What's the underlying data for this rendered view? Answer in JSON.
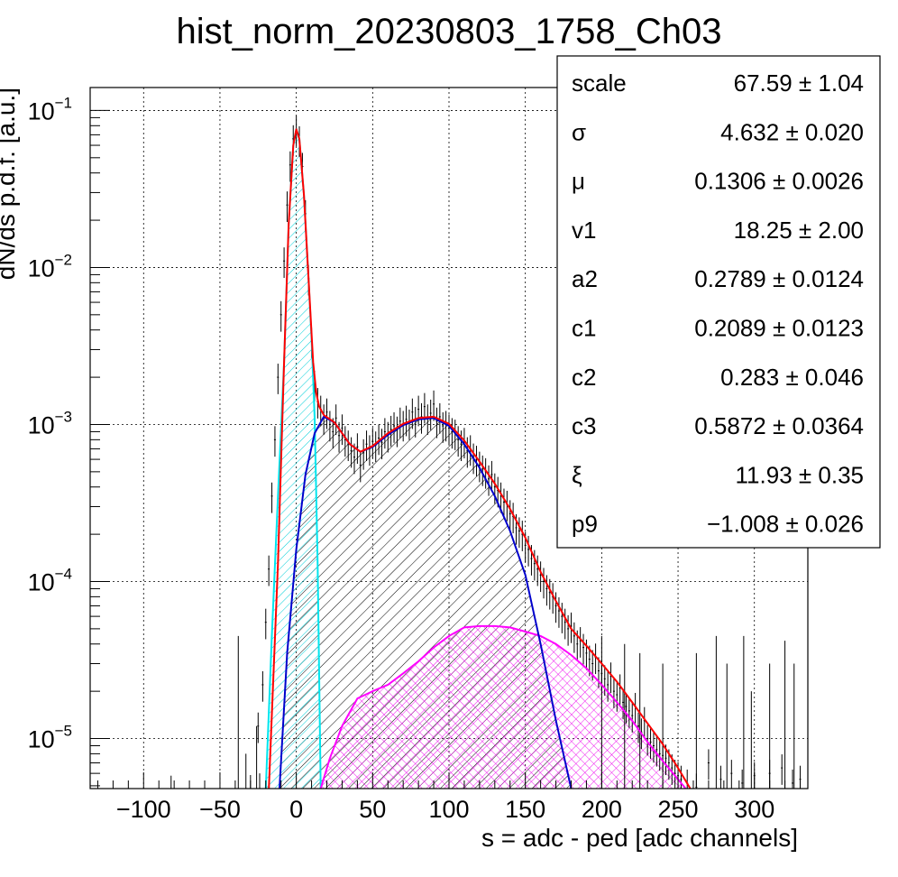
{
  "chart_data": {
    "type": "line",
    "title": "hist_norm_20230803_1758_Ch03",
    "xlabel": "s = adc - ped [adc channels]",
    "ylabel": "dN/ds p.d.f. [a.u.]",
    "xlim": [
      -135,
      335
    ],
    "ylim": [
      4.8e-06,
      0.14
    ],
    "yscale": "log",
    "grid": true,
    "x_ticks": [
      -100,
      -50,
      0,
      50,
      100,
      150,
      200,
      250,
      300
    ],
    "x_tick_labels": [
      "−100",
      "−50",
      "0",
      "50",
      "100",
      "150",
      "200",
      "250",
      "300"
    ],
    "y_ticks": [
      {
        "value": 0.1,
        "base": "10",
        "exp": "−1"
      },
      {
        "value": 0.01,
        "base": "10",
        "exp": "−2"
      },
      {
        "value": 0.001,
        "base": "10",
        "exp": "−3"
      },
      {
        "value": 0.0001,
        "base": "10",
        "exp": "−4"
      },
      {
        "value": 1e-05,
        "base": "10",
        "exp": "−5"
      }
    ],
    "stats_box": {
      "rows": [
        {
          "name": "scale",
          "value": "67.59 ± 1.04"
        },
        {
          "name": "σ",
          "value": "4.632 ± 0.020"
        },
        {
          "name": "μ",
          "value": "0.1306 ± 0.0026"
        },
        {
          "name": "v1",
          "value": "18.25 ± 2.00"
        },
        {
          "name": "a2",
          "value": "0.2789 ± 0.0124"
        },
        {
          "name": "c1",
          "value": "0.2089 ± 0.0123"
        },
        {
          "name": "c2",
          "value": "0.283 ± 0.046"
        },
        {
          "name": "c3",
          "value": "0.5872 ± 0.0364"
        },
        {
          "name": "ξ",
          "value": "11.93 ± 0.35"
        },
        {
          "name": "p9",
          "value": "−1.008 ± 0.026"
        }
      ]
    },
    "series": [
      {
        "role": "total-fit",
        "color": "#ff0000",
        "points": [
          [
            -18,
            4.8e-06
          ],
          [
            -12,
            0.00013
          ],
          [
            -8,
            0.0025
          ],
          [
            -5,
            0.019
          ],
          [
            -2,
            0.06
          ],
          [
            0,
            0.076
          ],
          [
            2,
            0.066
          ],
          [
            5,
            0.029
          ],
          [
            8,
            0.0085
          ],
          [
            11,
            0.0025
          ],
          [
            13,
            0.0016
          ],
          [
            15,
            0.0013
          ],
          [
            18,
            0.00115
          ],
          [
            25,
            0.00103
          ],
          [
            35,
            0.00075
          ],
          [
            42,
            0.00067
          ],
          [
            50,
            0.00073
          ],
          [
            60,
            0.00088
          ],
          [
            70,
            0.00101
          ],
          [
            80,
            0.0011
          ],
          [
            90,
            0.00112
          ],
          [
            100,
            0.00101
          ],
          [
            110,
            0.00079
          ],
          [
            120,
            0.00058
          ],
          [
            130,
            0.00042
          ],
          [
            140,
            0.00029
          ],
          [
            150,
            0.00019
          ],
          [
            160,
            0.000115
          ],
          [
            170,
            7.5e-05
          ],
          [
            180,
            5e-05
          ],
          [
            190,
            3.9e-05
          ],
          [
            200,
            3e-05
          ],
          [
            210,
            2.3e-05
          ],
          [
            220,
            1.7e-05
          ],
          [
            230,
            1.25e-05
          ],
          [
            240,
            9.2e-06
          ],
          [
            250,
            6.5e-06
          ],
          [
            258,
            4.8e-06
          ]
        ]
      },
      {
        "role": "pedestal-component",
        "color": "#00e5ee",
        "fill": "hatch",
        "points": [
          [
            -20,
            4.8e-06
          ],
          [
            -16,
            4.5e-05
          ],
          [
            -12,
            0.00035
          ],
          [
            -8,
            0.0025
          ],
          [
            -5,
            0.019
          ],
          [
            -2,
            0.06
          ],
          [
            0,
            0.076
          ],
          [
            2,
            0.066
          ],
          [
            5,
            0.029
          ],
          [
            8,
            0.0085
          ],
          [
            10,
            0.0035
          ],
          [
            12,
            0.0011
          ],
          [
            14,
            0.00013
          ],
          [
            16,
            4.8e-06
          ]
        ]
      },
      {
        "role": "single-photon-component",
        "color": "#0000cc",
        "fill": "hatch",
        "points": [
          [
            -11,
            4.8e-06
          ],
          [
            -6,
            3.5e-05
          ],
          [
            0,
            0.00016
          ],
          [
            6,
            0.00048
          ],
          [
            12,
            0.00088
          ],
          [
            18,
            0.00112
          ],
          [
            25,
            0.00103
          ],
          [
            35,
            0.00075
          ],
          [
            42,
            0.00067
          ],
          [
            50,
            0.00072
          ],
          [
            60,
            0.00086
          ],
          [
            70,
            0.00099
          ],
          [
            80,
            0.00108
          ],
          [
            90,
            0.0011
          ],
          [
            100,
            0.00098
          ],
          [
            110,
            0.00075
          ],
          [
            120,
            0.00053
          ],
          [
            130,
            0.00035
          ],
          [
            140,
            0.00021
          ],
          [
            150,
            0.00011
          ],
          [
            160,
            4e-05
          ],
          [
            170,
            1.3e-05
          ],
          [
            180,
            4.8e-06
          ]
        ]
      },
      {
        "role": "multi-photon-component",
        "color": "#ff00ff",
        "fill": "hatch",
        "points": [
          [
            16,
            4.8e-06
          ],
          [
            22,
            7.5e-06
          ],
          [
            30,
            1.2e-05
          ],
          [
            40,
            1.8e-05
          ],
          [
            50,
            2e-05
          ],
          [
            60,
            2.2e-05
          ],
          [
            70,
            2.6e-05
          ],
          [
            80,
            3.1e-05
          ],
          [
            90,
            3.8e-05
          ],
          [
            100,
            4.5e-05
          ],
          [
            110,
            5.1e-05
          ],
          [
            120,
            5.2e-05
          ],
          [
            130,
            5.2e-05
          ],
          [
            140,
            5.1e-05
          ],
          [
            150,
            4.8e-05
          ],
          [
            160,
            4.5e-05
          ],
          [
            170,
            4e-05
          ],
          [
            180,
            3.4e-05
          ],
          [
            190,
            2.8e-05
          ],
          [
            200,
            2.2e-05
          ],
          [
            210,
            1.7e-05
          ],
          [
            220,
            1.3e-05
          ],
          [
            230,
            9.5e-06
          ],
          [
            240,
            7.2e-06
          ],
          [
            250,
            5.5e-06
          ],
          [
            255,
            4.8e-06
          ]
        ]
      }
    ],
    "histogram": {
      "color": "#000000",
      "bin_width": 1.2,
      "bins": [
        [
          -30,
          4.8e-06
        ],
        [
          -25,
          1.2e-05
        ],
        [
          -22,
          2.2e-05
        ],
        [
          -20,
          5.5e-05
        ],
        [
          -18,
          0.00012
        ],
        [
          -16,
          0.00035
        ],
        [
          -14,
          0.0008
        ],
        [
          -12,
          0.002
        ],
        [
          -10,
          0.005
        ],
        [
          -8,
          0.011
        ],
        [
          -6,
          0.025
        ],
        [
          -4,
          0.045
        ],
        [
          -2,
          0.066
        ],
        [
          0,
          0.076
        ],
        [
          2,
          0.065
        ],
        [
          4,
          0.044
        ],
        [
          6,
          0.022
        ],
        [
          8,
          0.0085
        ],
        [
          10,
          0.0034
        ],
        [
          12,
          0.0018
        ],
        [
          14,
          0.0014
        ],
        [
          16,
          0.00125
        ],
        [
          18,
          0.0011
        ],
        [
          20,
          0.0012
        ],
        [
          22,
          0.001
        ],
        [
          24,
          0.0009
        ],
        [
          26,
          0.0011
        ],
        [
          28,
          0.00085
        ],
        [
          30,
          0.00095
        ],
        [
          32,
          0.0008
        ],
        [
          34,
          0.00075
        ],
        [
          36,
          0.00068
        ],
        [
          38,
          0.00062
        ],
        [
          40,
          0.00072
        ],
        [
          42,
          0.00055
        ],
        [
          44,
          0.00066
        ],
        [
          46,
          0.00075
        ],
        [
          48,
          0.0007
        ],
        [
          50,
          0.00078
        ],
        [
          52,
          0.00074
        ],
        [
          54,
          0.00082
        ],
        [
          56,
          0.00077
        ],
        [
          58,
          0.0009
        ],
        [
          60,
          0.00085
        ],
        [
          62,
          0.00093
        ],
        [
          64,
          0.00098
        ],
        [
          66,
          0.00092
        ],
        [
          68,
          0.00105
        ],
        [
          70,
          0.001
        ],
        [
          72,
          0.00108
        ],
        [
          74,
          0.00102
        ],
        [
          76,
          0.0012
        ],
        [
          78,
          0.00106
        ],
        [
          80,
          0.00125
        ],
        [
          82,
          0.00112
        ],
        [
          84,
          0.0013
        ],
        [
          86,
          0.0011
        ],
        [
          88,
          0.00118
        ],
        [
          90,
          0.00135
        ],
        [
          92,
          0.00105
        ],
        [
          94,
          0.00112
        ],
        [
          96,
          0.00098
        ],
        [
          98,
          0.001
        ],
        [
          100,
          0.00095
        ],
        [
          102,
          0.0009
        ],
        [
          104,
          0.00088
        ],
        [
          106,
          0.0008
        ],
        [
          108,
          0.00075
        ],
        [
          110,
          0.00078
        ],
        [
          112,
          0.00068
        ],
        [
          114,
          0.0007
        ],
        [
          116,
          0.00062
        ],
        [
          118,
          0.0006
        ],
        [
          120,
          0.00055
        ],
        [
          122,
          0.00052
        ],
        [
          124,
          0.0005
        ],
        [
          126,
          0.00045
        ],
        [
          128,
          0.00048
        ],
        [
          130,
          0.0004
        ],
        [
          132,
          0.00038
        ],
        [
          134,
          0.00035
        ],
        [
          136,
          0.00032
        ],
        [
          138,
          0.00031
        ],
        [
          140,
          0.00027
        ],
        [
          142,
          0.00026
        ],
        [
          144,
          0.00022
        ],
        [
          146,
          0.00021
        ],
        [
          148,
          0.0002
        ],
        [
          150,
          0.00017
        ],
        [
          152,
          0.00016
        ],
        [
          154,
          0.00014
        ],
        [
          156,
          0.00013
        ],
        [
          158,
          0.00012
        ],
        [
          160,
          0.00011
        ],
        [
          162,
          0.0001
        ],
        [
          164,
          9e-05
        ],
        [
          166,
          8.5e-05
        ],
        [
          168,
          8e-05
        ],
        [
          170,
          7e-05
        ],
        [
          172,
          6.5e-05
        ],
        [
          174,
          6e-05
        ],
        [
          176,
          5.5e-05
        ],
        [
          178,
          5e-05
        ],
        [
          180,
          5.2e-05
        ],
        [
          182,
          4.5e-05
        ],
        [
          184,
          4e-05
        ],
        [
          186,
          4.2e-05
        ],
        [
          188,
          3.8e-05
        ],
        [
          190,
          3.5e-05
        ],
        [
          192,
          3.2e-05
        ],
        [
          194,
          3e-05
        ],
        [
          196,
          3.3e-05
        ],
        [
          198,
          2.7e-05
        ],
        [
          200,
          2.6e-05
        ],
        [
          202,
          2.4e-05
        ],
        [
          204,
          2.2e-05
        ],
        [
          206,
          2.5e-05
        ],
        [
          208,
          2e-05
        ],
        [
          210,
          1.9e-05
        ],
        [
          212,
          2.1e-05
        ],
        [
          214,
          1.7e-05
        ],
        [
          216,
          1.6e-05
        ],
        [
          218,
          1.5e-05
        ],
        [
          220,
          1.4e-05
        ],
        [
          222,
          1.6e-05
        ],
        [
          224,
          1.2e-05
        ],
        [
          226,
          1.1e-05
        ],
        [
          228,
          1.3e-05
        ],
        [
          230,
          1e-05
        ],
        [
          232,
          9.5e-06
        ],
        [
          234,
          9e-06
        ],
        [
          236,
          8.5e-06
        ],
        [
          238,
          8e-06
        ],
        [
          240,
          7.8e-06
        ],
        [
          242,
          7.5e-06
        ],
        [
          244,
          7e-06
        ],
        [
          246,
          6.5e-06
        ],
        [
          248,
          6e-06
        ],
        [
          250,
          5.8e-06
        ],
        [
          252,
          5.5e-06
        ],
        [
          256,
          5.2e-06
        ],
        [
          262,
          4.9e-06
        ],
        [
          270,
          7e-06
        ],
        [
          278,
          5.5e-06
        ],
        [
          285,
          6e-06
        ],
        [
          292,
          5.2e-06
        ],
        [
          300,
          5.8e-06
        ],
        [
          310,
          6e-06
        ],
        [
          318,
          6.5e-06
        ],
        [
          325,
          5.2e-06
        ],
        [
          330,
          5.5e-06
        ]
      ],
      "outliers": [
        [
          -118,
          4.8e-06
        ],
        [
          -110,
          4.8e-06
        ],
        [
          -100,
          4.8e-06
        ],
        [
          -82,
          5.8e-06
        ],
        [
          -55,
          4.8e-06
        ],
        [
          -50,
          4.8e-06
        ],
        [
          -38,
          4.5e-05
        ],
        [
          -33,
          8e-06
        ],
        [
          -26,
          1.2e-05
        ],
        [
          -24,
          6e-06
        ],
        [
          200,
          4.5e-05
        ],
        [
          215,
          4e-05
        ],
        [
          225,
          3.5e-05
        ],
        [
          240,
          3e-05
        ],
        [
          262,
          3.5e-05
        ],
        [
          275,
          4.5e-05
        ],
        [
          282,
          3e-05
        ],
        [
          293,
          4.5e-05
        ],
        [
          298,
          2e-05
        ],
        [
          310,
          3e-05
        ],
        [
          320,
          4.2e-05
        ],
        [
          326,
          3e-05
        ]
      ]
    }
  }
}
